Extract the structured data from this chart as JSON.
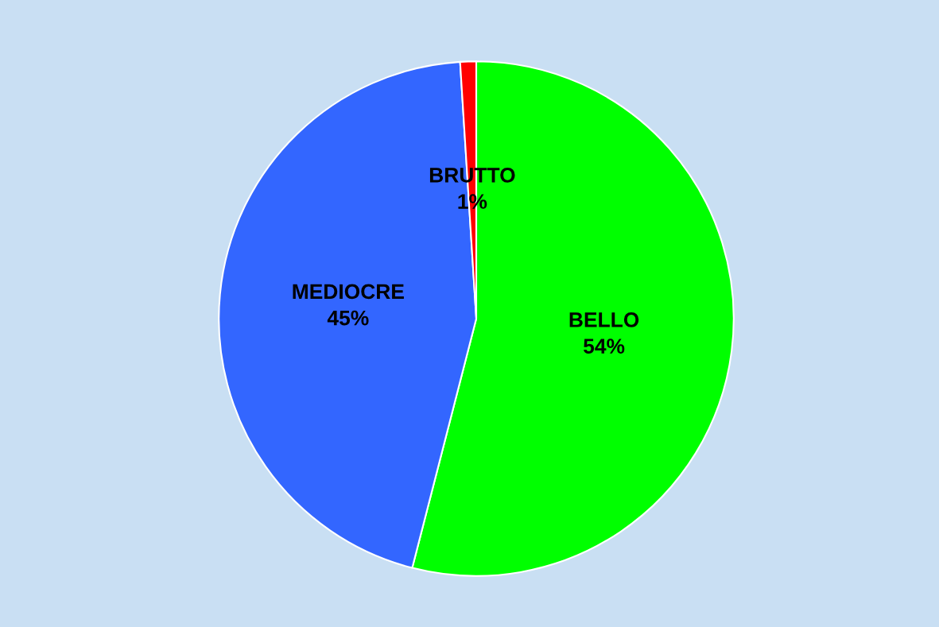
{
  "chart_data": {
    "type": "pie",
    "categories": [
      "BELLO",
      "MEDIOCRE",
      "BRUTTO"
    ],
    "values": [
      54,
      45,
      1
    ],
    "value_labels": [
      "54%",
      "45%",
      "1%"
    ],
    "colors": [
      "#00ff00",
      "#3366ff",
      "#ff0000"
    ],
    "legend": false
  }
}
